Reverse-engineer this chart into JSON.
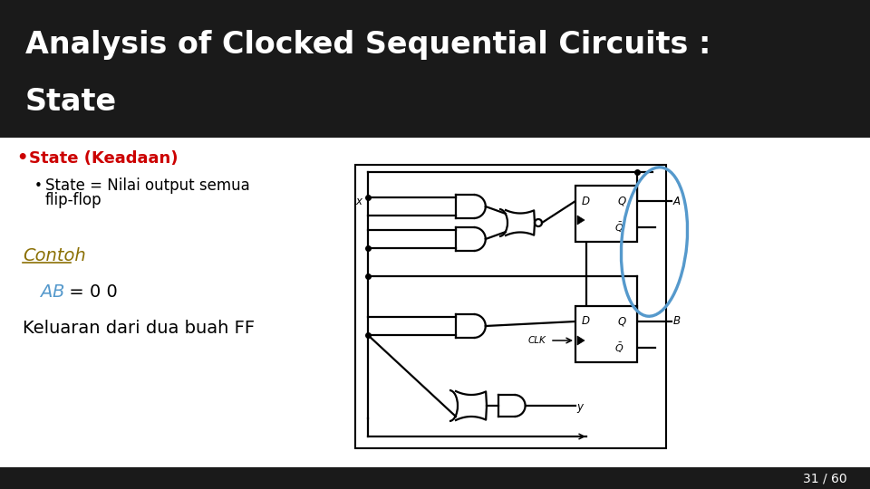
{
  "title_line1": "Analysis of Clocked Sequential Circuits :",
  "title_line2": "State",
  "title_bg_color": "#1a1a1a",
  "title_text_color": "#ffffff",
  "slide_bg_color": "#ffffff",
  "bullet1_text": "State (Keadaan)",
  "bullet1_color": "#cc0000",
  "bullet2_line1": "State = Nilai output semua",
  "bullet2_line2": "flip-flop",
  "bullet2_color": "#000000",
  "contoh_text": "Contoh",
  "contoh_color": "#8B7005",
  "ab_a_text": "A",
  "ab_b_text": "B",
  "ab_rest_text": " = 0 0",
  "ab_color": "#5599cc",
  "keluaran_text": "Keluaran dari dua buah FF",
  "keluaran_color": "#000000",
  "footer_bg_color": "#1a1a1a",
  "footer_text": "31 / 60",
  "footer_text_color": "#ffffff",
  "circuit_color": "#000000",
  "highlight_color": "#5599cc",
  "title_font_size": 24,
  "body_font_size": 13,
  "contoh_font_size": 14,
  "ab_font_size": 14,
  "keluaran_font_size": 14
}
